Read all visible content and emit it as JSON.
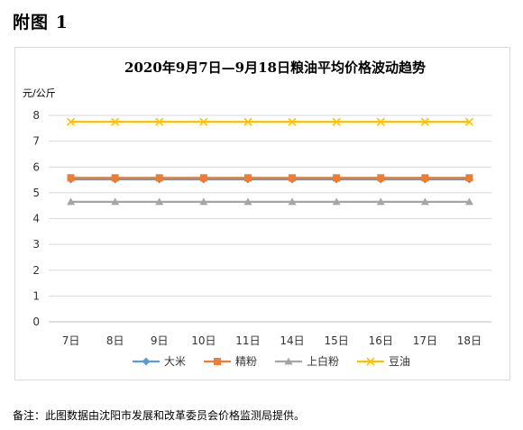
{
  "figure_label": "附图 1",
  "footnote": "备注：此图数据由沈阳市发展和改革委员会价格监测局提供。",
  "chart_data": {
    "type": "line",
    "title": "2020年9月7日—9月18日粮油平均价格波动趋势",
    "ylabel": "元/公斤",
    "xlabel": "",
    "ylim": [
      0,
      8
    ],
    "yticks": [
      0,
      1,
      2,
      3,
      4,
      5,
      6,
      7,
      8
    ],
    "grid": true,
    "legend_position": "bottom",
    "categories": [
      "7日",
      "8日",
      "9日",
      "10日",
      "11日",
      "14日",
      "15日",
      "16日",
      "17日",
      "18日"
    ],
    "series": [
      {
        "name": "大米",
        "color": "#5b9bd5",
        "marker": "diamond",
        "values": [
          5.52,
          5.52,
          5.52,
          5.52,
          5.52,
          5.52,
          5.52,
          5.52,
          5.52,
          5.52
        ]
      },
      {
        "name": "精粉",
        "color": "#ed7d31",
        "marker": "square",
        "values": [
          5.58,
          5.58,
          5.58,
          5.58,
          5.58,
          5.58,
          5.58,
          5.58,
          5.58,
          5.58
        ]
      },
      {
        "name": "上白粉",
        "color": "#a5a5a5",
        "marker": "triangle",
        "values": [
          4.65,
          4.65,
          4.65,
          4.65,
          4.65,
          4.65,
          4.65,
          4.65,
          4.65,
          4.65
        ]
      },
      {
        "name": "豆油",
        "color": "#ffc000",
        "marker": "x",
        "values": [
          7.75,
          7.75,
          7.75,
          7.75,
          7.75,
          7.75,
          7.75,
          7.75,
          7.75,
          7.75
        ]
      }
    ]
  }
}
